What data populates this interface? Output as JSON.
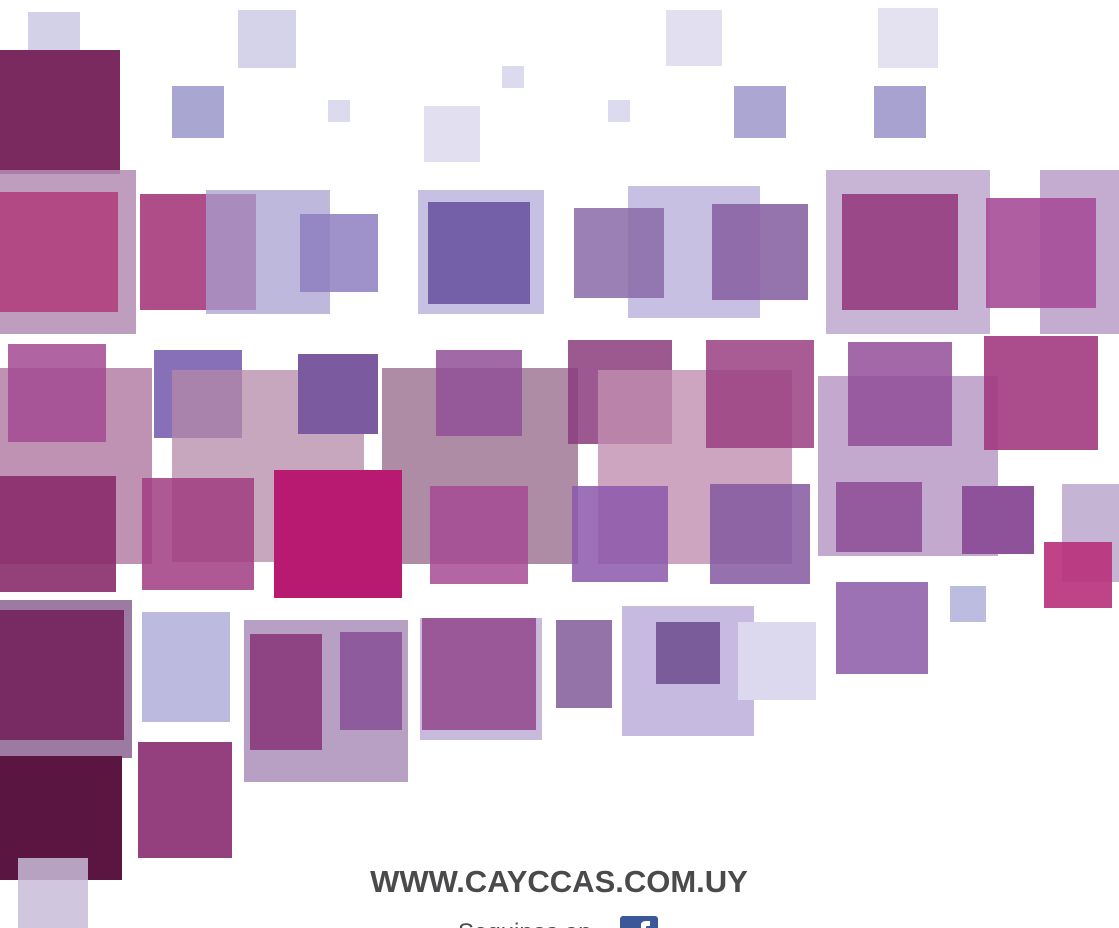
{
  "footer": {
    "website": "WWW.CAYCCAS.COM.UY",
    "follow": "Seguinos en"
  }
}
